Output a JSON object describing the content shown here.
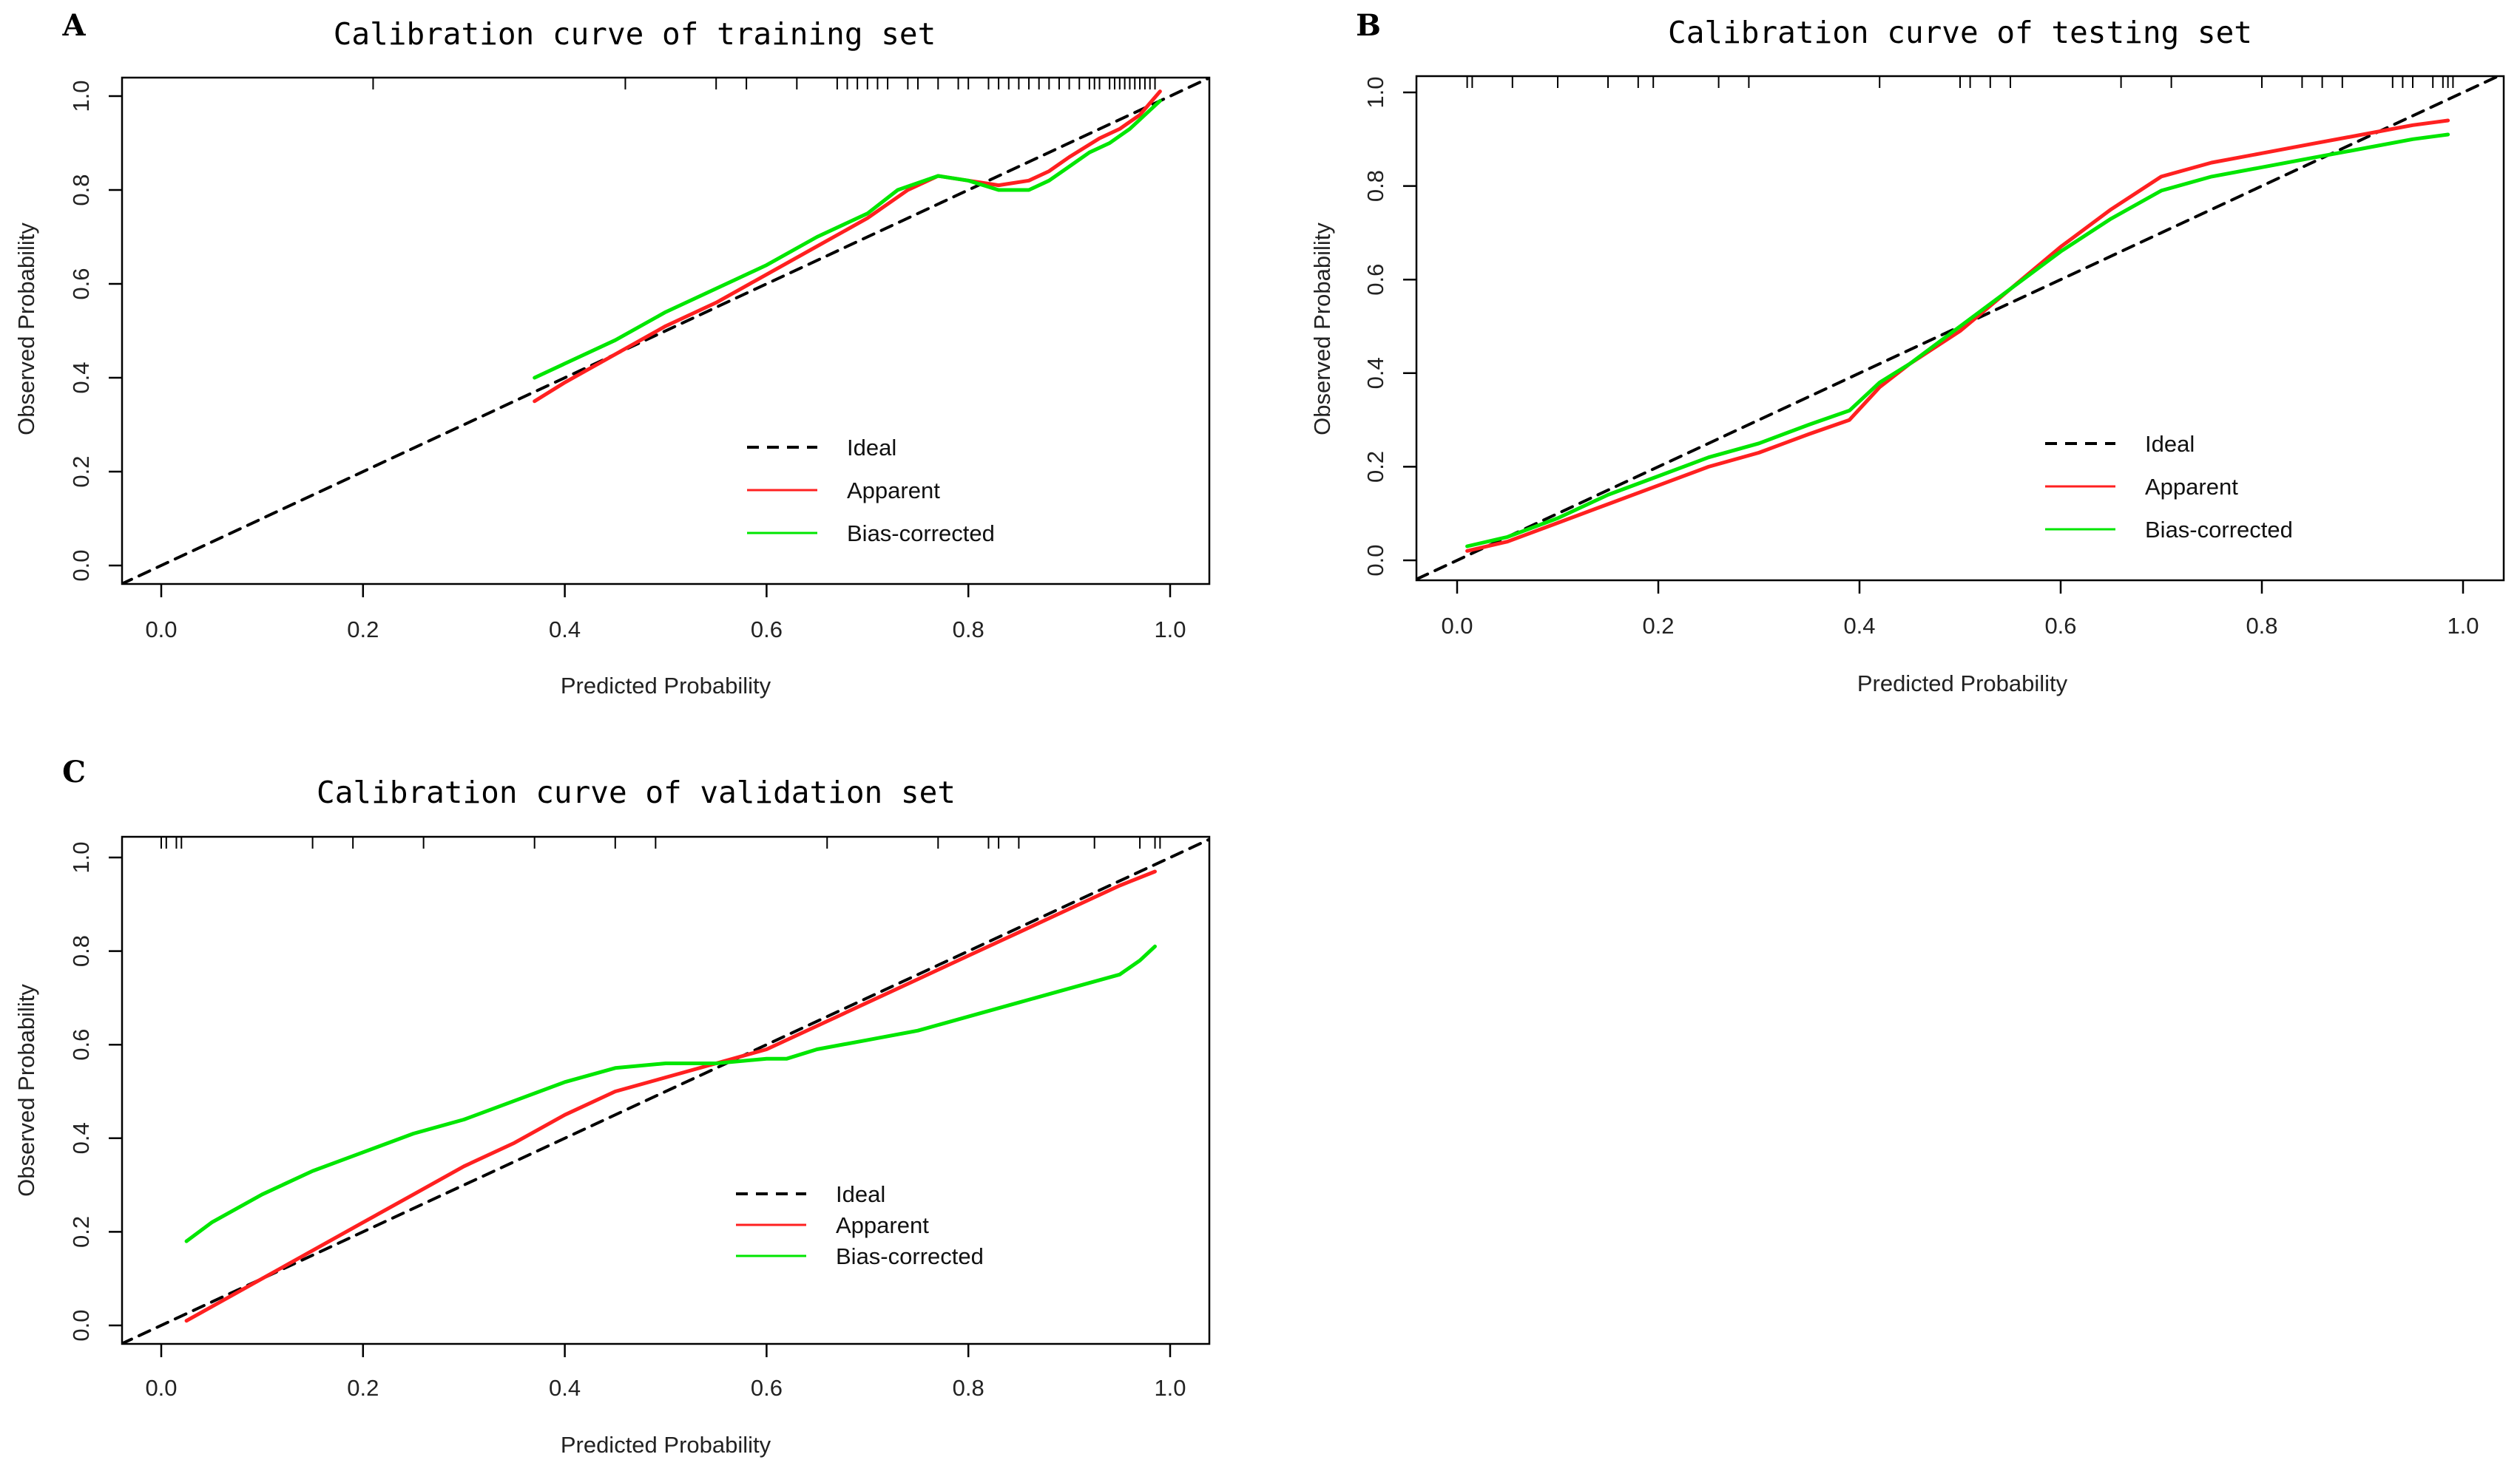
{
  "colors": {
    "ideal": "#000000",
    "apparent": "#ff2020",
    "bias_corrected": "#00e600"
  },
  "chart_data": [
    {
      "type": "line",
      "panel": "A",
      "title": "Calibration curve of training set",
      "xlabel": "Predicted Probability",
      "ylabel": "Observed Probability",
      "xlim": [
        0.0,
        1.0
      ],
      "ylim": [
        0.0,
        1.0
      ],
      "xticks": [
        "0.0",
        "0.2",
        "0.4",
        "0.6",
        "0.8",
        "1.0"
      ],
      "yticks": [
        "0.0",
        "0.2",
        "0.4",
        "0.6",
        "0.8",
        "1.0"
      ],
      "grid": false,
      "legend_position": "bottom-right",
      "rug": [
        0.21,
        0.46,
        0.55,
        0.58,
        0.63,
        0.67,
        0.68,
        0.69,
        0.7,
        0.71,
        0.72,
        0.74,
        0.75,
        0.77,
        0.79,
        0.8,
        0.82,
        0.83,
        0.84,
        0.85,
        0.86,
        0.87,
        0.88,
        0.89,
        0.9,
        0.91,
        0.92,
        0.925,
        0.93,
        0.94,
        0.945,
        0.95,
        0.955,
        0.96,
        0.965,
        0.97,
        0.975,
        0.98,
        0.985
      ],
      "series": [
        {
          "name": "Ideal",
          "color": "#000000",
          "dash": true,
          "x": [
            -0.04,
            1.04
          ],
          "y": [
            -0.04,
            1.04
          ]
        },
        {
          "name": "Apparent",
          "color": "#ff2020",
          "x": [
            0.37,
            0.4,
            0.45,
            0.5,
            0.55,
            0.6,
            0.65,
            0.7,
            0.74,
            0.77,
            0.8,
            0.83,
            0.86,
            0.88,
            0.9,
            0.93,
            0.95,
            0.97,
            0.99
          ],
          "y": [
            0.35,
            0.39,
            0.45,
            0.51,
            0.56,
            0.62,
            0.68,
            0.74,
            0.8,
            0.83,
            0.82,
            0.81,
            0.82,
            0.84,
            0.87,
            0.91,
            0.93,
            0.96,
            1.01
          ]
        },
        {
          "name": "Bias-corrected",
          "color": "#00e600",
          "x": [
            0.37,
            0.4,
            0.45,
            0.5,
            0.55,
            0.6,
            0.65,
            0.7,
            0.73,
            0.77,
            0.8,
            0.83,
            0.86,
            0.88,
            0.9,
            0.92,
            0.94,
            0.96,
            0.98,
            0.99
          ],
          "y": [
            0.4,
            0.43,
            0.48,
            0.54,
            0.59,
            0.64,
            0.7,
            0.75,
            0.8,
            0.83,
            0.82,
            0.8,
            0.8,
            0.82,
            0.85,
            0.88,
            0.9,
            0.93,
            0.97,
            0.99
          ]
        }
      ]
    },
    {
      "type": "line",
      "panel": "B",
      "title": "Calibration curve of testing set",
      "xlabel": "Predicted Probability",
      "ylabel": "Observed Probability",
      "xlim": [
        0.0,
        1.0
      ],
      "ylim": [
        0.0,
        1.0
      ],
      "xticks": [
        "0.0",
        "0.2",
        "0.4",
        "0.6",
        "0.8",
        "1.0"
      ],
      "yticks": [
        "0.0",
        "0.2",
        "0.4",
        "0.6",
        "0.8",
        "1.0"
      ],
      "grid": false,
      "legend_position": "bottom-right",
      "rug": [
        0.01,
        0.015,
        0.055,
        0.1,
        0.15,
        0.18,
        0.195,
        0.26,
        0.29,
        0.42,
        0.5,
        0.51,
        0.53,
        0.55,
        0.66,
        0.71,
        0.8,
        0.84,
        0.86,
        0.88,
        0.93,
        0.94,
        0.95,
        0.97,
        0.98,
        0.985,
        0.99
      ],
      "series": [
        {
          "name": "Ideal",
          "color": "#000000",
          "dash": true,
          "x": [
            -0.04,
            1.04
          ],
          "y": [
            -0.04,
            1.04
          ]
        },
        {
          "name": "Apparent",
          "color": "#ff2020",
          "x": [
            0.01,
            0.05,
            0.1,
            0.15,
            0.2,
            0.25,
            0.3,
            0.35,
            0.39,
            0.42,
            0.45,
            0.5,
            0.55,
            0.6,
            0.65,
            0.7,
            0.75,
            0.8,
            0.85,
            0.9,
            0.95,
            0.985
          ],
          "y": [
            0.02,
            0.04,
            0.08,
            0.12,
            0.16,
            0.2,
            0.23,
            0.27,
            0.3,
            0.37,
            0.42,
            0.49,
            0.58,
            0.67,
            0.75,
            0.82,
            0.85,
            0.87,
            0.89,
            0.91,
            0.93,
            0.94
          ]
        },
        {
          "name": "Bias-corrected",
          "color": "#00e600",
          "x": [
            0.01,
            0.05,
            0.1,
            0.15,
            0.2,
            0.25,
            0.3,
            0.35,
            0.39,
            0.42,
            0.45,
            0.5,
            0.55,
            0.6,
            0.65,
            0.7,
            0.75,
            0.8,
            0.85,
            0.9,
            0.95,
            0.985
          ],
          "y": [
            0.03,
            0.05,
            0.09,
            0.14,
            0.18,
            0.22,
            0.25,
            0.29,
            0.32,
            0.38,
            0.42,
            0.5,
            0.58,
            0.66,
            0.73,
            0.79,
            0.82,
            0.84,
            0.86,
            0.88,
            0.9,
            0.91
          ]
        }
      ]
    },
    {
      "type": "line",
      "panel": "C",
      "title": "Calibration curve of validation set",
      "xlabel": "Predicted Probability",
      "ylabel": "Observed Probability",
      "xlim": [
        0.0,
        1.0
      ],
      "ylim": [
        0.0,
        1.0
      ],
      "xticks": [
        "0.0",
        "0.2",
        "0.4",
        "0.6",
        "0.8",
        "1.0"
      ],
      "yticks": [
        "0.0",
        "0.2",
        "0.4",
        "0.6",
        "0.8",
        "1.0"
      ],
      "grid": false,
      "legend_position": "center-right",
      "rug": [
        0.0,
        0.005,
        0.015,
        0.02,
        0.15,
        0.19,
        0.26,
        0.37,
        0.45,
        0.49,
        0.66,
        0.77,
        0.82,
        0.83,
        0.85,
        0.925,
        0.97,
        0.985,
        0.99
      ],
      "series": [
        {
          "name": "Ideal",
          "color": "#000000",
          "dash": true,
          "x": [
            -0.04,
            1.04
          ],
          "y": [
            -0.04,
            1.04
          ]
        },
        {
          "name": "Apparent",
          "color": "#ff2020",
          "x": [
            0.025,
            0.05,
            0.1,
            0.15,
            0.2,
            0.25,
            0.3,
            0.35,
            0.4,
            0.45,
            0.5,
            0.55,
            0.6,
            0.65,
            0.7,
            0.75,
            0.8,
            0.85,
            0.9,
            0.95,
            0.985
          ],
          "y": [
            0.01,
            0.04,
            0.1,
            0.16,
            0.22,
            0.28,
            0.34,
            0.39,
            0.45,
            0.5,
            0.53,
            0.56,
            0.59,
            0.64,
            0.69,
            0.74,
            0.79,
            0.84,
            0.89,
            0.94,
            0.97
          ]
        },
        {
          "name": "Bias-corrected",
          "color": "#00e600",
          "x": [
            0.025,
            0.05,
            0.1,
            0.15,
            0.2,
            0.25,
            0.3,
            0.35,
            0.4,
            0.45,
            0.5,
            0.55,
            0.6,
            0.62,
            0.65,
            0.7,
            0.75,
            0.8,
            0.85,
            0.9,
            0.95,
            0.97,
            0.985
          ],
          "y": [
            0.18,
            0.22,
            0.28,
            0.33,
            0.37,
            0.41,
            0.44,
            0.48,
            0.52,
            0.55,
            0.56,
            0.56,
            0.57,
            0.57,
            0.59,
            0.61,
            0.63,
            0.66,
            0.69,
            0.72,
            0.75,
            0.78,
            0.81
          ]
        }
      ]
    }
  ]
}
